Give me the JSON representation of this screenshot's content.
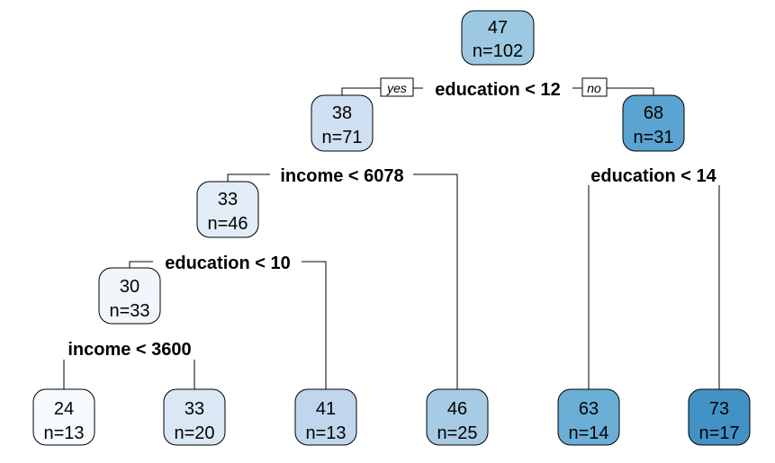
{
  "nodes": [
    {
      "id": "root",
      "value": "47",
      "n": "n=102",
      "color": "#9cc9e1"
    },
    {
      "id": "n2",
      "value": "38",
      "n": "n=71",
      "color": "#cfe0f2"
    },
    {
      "id": "n3",
      "value": "68",
      "n": "n=31",
      "color": "#5ba3d0"
    },
    {
      "id": "n4",
      "value": "33",
      "n": "n=46",
      "color": "#e2edf8"
    },
    {
      "id": "n8",
      "value": "30",
      "n": "n=33",
      "color": "#f0f6fc"
    },
    {
      "id": "leaf1",
      "value": "24",
      "n": "n=13",
      "color": "#f7fbff"
    },
    {
      "id": "leaf2",
      "value": "33",
      "n": "n=20",
      "color": "#dae8f6"
    },
    {
      "id": "leaf3",
      "value": "41",
      "n": "n=13",
      "color": "#bfd6ec"
    },
    {
      "id": "leaf4",
      "value": "46",
      "n": "n=25",
      "color": "#a7cbe4"
    },
    {
      "id": "leaf5",
      "value": "63",
      "n": "n=14",
      "color": "#6aaed6"
    },
    {
      "id": "leaf6",
      "value": "73",
      "n": "n=17",
      "color": "#4292c6"
    }
  ],
  "splits": [
    {
      "id": "s_root",
      "label": "education < 12"
    },
    {
      "id": "s_n2",
      "label": "income < 6078"
    },
    {
      "id": "s_n3",
      "label": "education < 14"
    },
    {
      "id": "s_n4",
      "label": "education < 10"
    },
    {
      "id": "s_n8",
      "label": "income < 3600"
    }
  ],
  "branch_labels": {
    "yes": "yes",
    "no": "no"
  }
}
